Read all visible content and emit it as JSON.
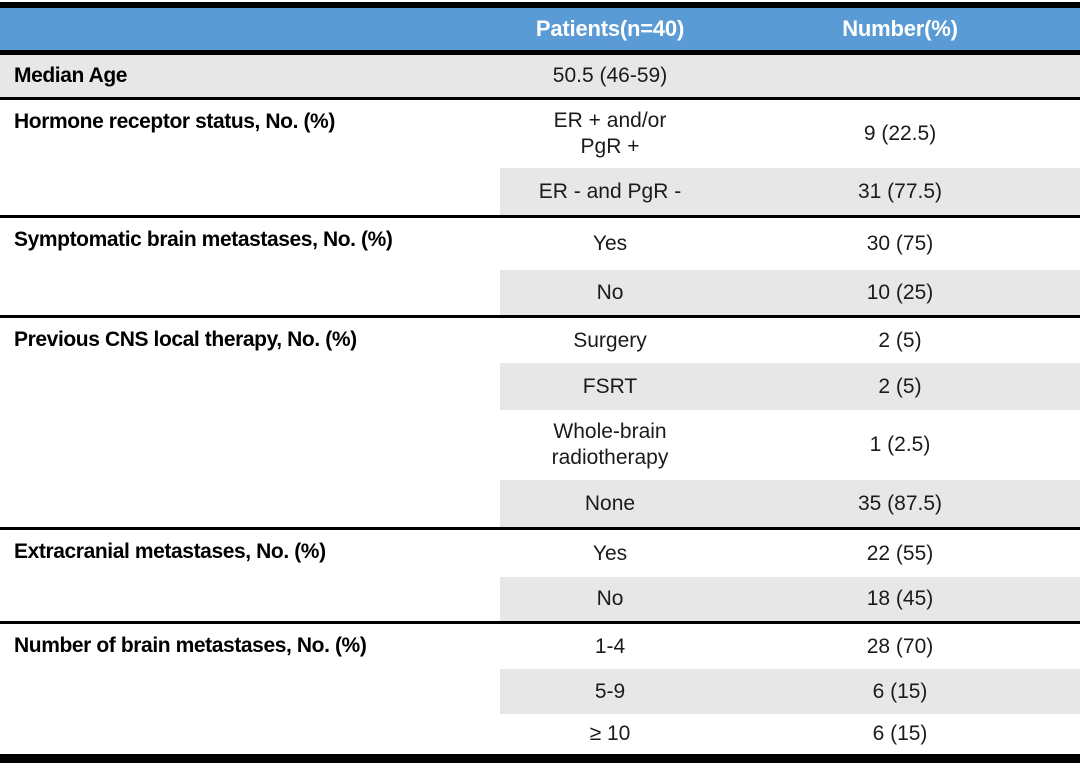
{
  "table": {
    "colors": {
      "header_bg": "#5B9BD5",
      "header_text": "#FFFFFF",
      "band_bg": "#E8E7E7",
      "border": "#000000",
      "body_text": "#1B1B1B"
    },
    "header": {
      "col_patients": "Patients(n=40)",
      "col_number": "Number(%)"
    },
    "sections": [
      {
        "label": "Median Age",
        "rows": [
          {
            "value": "50.5 (46-59)",
            "number": ""
          }
        ]
      },
      {
        "label": "Hormone receptor status, No. (%)",
        "rows": [
          {
            "value": "ER + and/or\nPgR +",
            "number": "9 (22.5)"
          },
          {
            "value": "ER - and PgR -",
            "number": "31 (77.5)"
          }
        ]
      },
      {
        "label": "Symptomatic brain metastases, No. (%)",
        "rows": [
          {
            "value": "Yes",
            "number": "30 (75)"
          },
          {
            "value": "No",
            "number": "10 (25)"
          }
        ]
      },
      {
        "label": "Previous CNS local therapy, No. (%)",
        "rows": [
          {
            "value": "Surgery",
            "number": "2 (5)"
          },
          {
            "value": "FSRT",
            "number": "2 (5)"
          },
          {
            "value": "Whole-brain\nradiotherapy",
            "number": "1 (2.5)"
          },
          {
            "value": "None",
            "number": "35 (87.5)"
          }
        ]
      },
      {
        "label": "Extracranial metastases, No. (%)",
        "rows": [
          {
            "value": "Yes",
            "number": "22 (55)"
          },
          {
            "value": "No",
            "number": "18 (45)"
          }
        ]
      },
      {
        "label": "Number of brain metastases, No. (%)",
        "rows": [
          {
            "value": "1-4",
            "number": "28 (70)"
          },
          {
            "value": "5-9",
            "number": "6 (15)"
          },
          {
            "value": "≥ 10",
            "number": "6 (15)"
          }
        ]
      }
    ]
  },
  "chart_data": {
    "type": "table",
    "columns": [
      "",
      "Patients(n=40)",
      "Number(%)"
    ],
    "rows": [
      [
        "Median Age",
        "50.5 (46-59)",
        ""
      ],
      [
        "Hormone receptor status, No. (%)",
        "ER + and/or PgR +",
        "9 (22.5)"
      ],
      [
        "",
        "ER - and PgR -",
        "31 (77.5)"
      ],
      [
        "Symptomatic brain metastases, No. (%)",
        "Yes",
        "30 (75)"
      ],
      [
        "",
        "No",
        "10 (25)"
      ],
      [
        "Previous CNS local therapy, No. (%)",
        "Surgery",
        "2 (5)"
      ],
      [
        "",
        "FSRT",
        "2 (5)"
      ],
      [
        "",
        "Whole-brain radiotherapy",
        "1 (2.5)"
      ],
      [
        "",
        "None",
        "35 (87.5)"
      ],
      [
        "Extracranial metastases, No. (%)",
        "Yes",
        "22 (55)"
      ],
      [
        "",
        "No",
        "18 (45)"
      ],
      [
        "Number of brain metastases, No. (%)",
        "1-4",
        "28 (70)"
      ],
      [
        "",
        "5-9",
        "6 (15)"
      ],
      [
        "",
        "≥ 10",
        "6 (15)"
      ]
    ],
    "layout_hints": {
      "header_bg": "#5B9BD5",
      "band_bg": "#E8E7E7",
      "banding": "second and fourth sub-row of each group shaded (columns 2-3 only); Median Age row fully shaded"
    }
  }
}
